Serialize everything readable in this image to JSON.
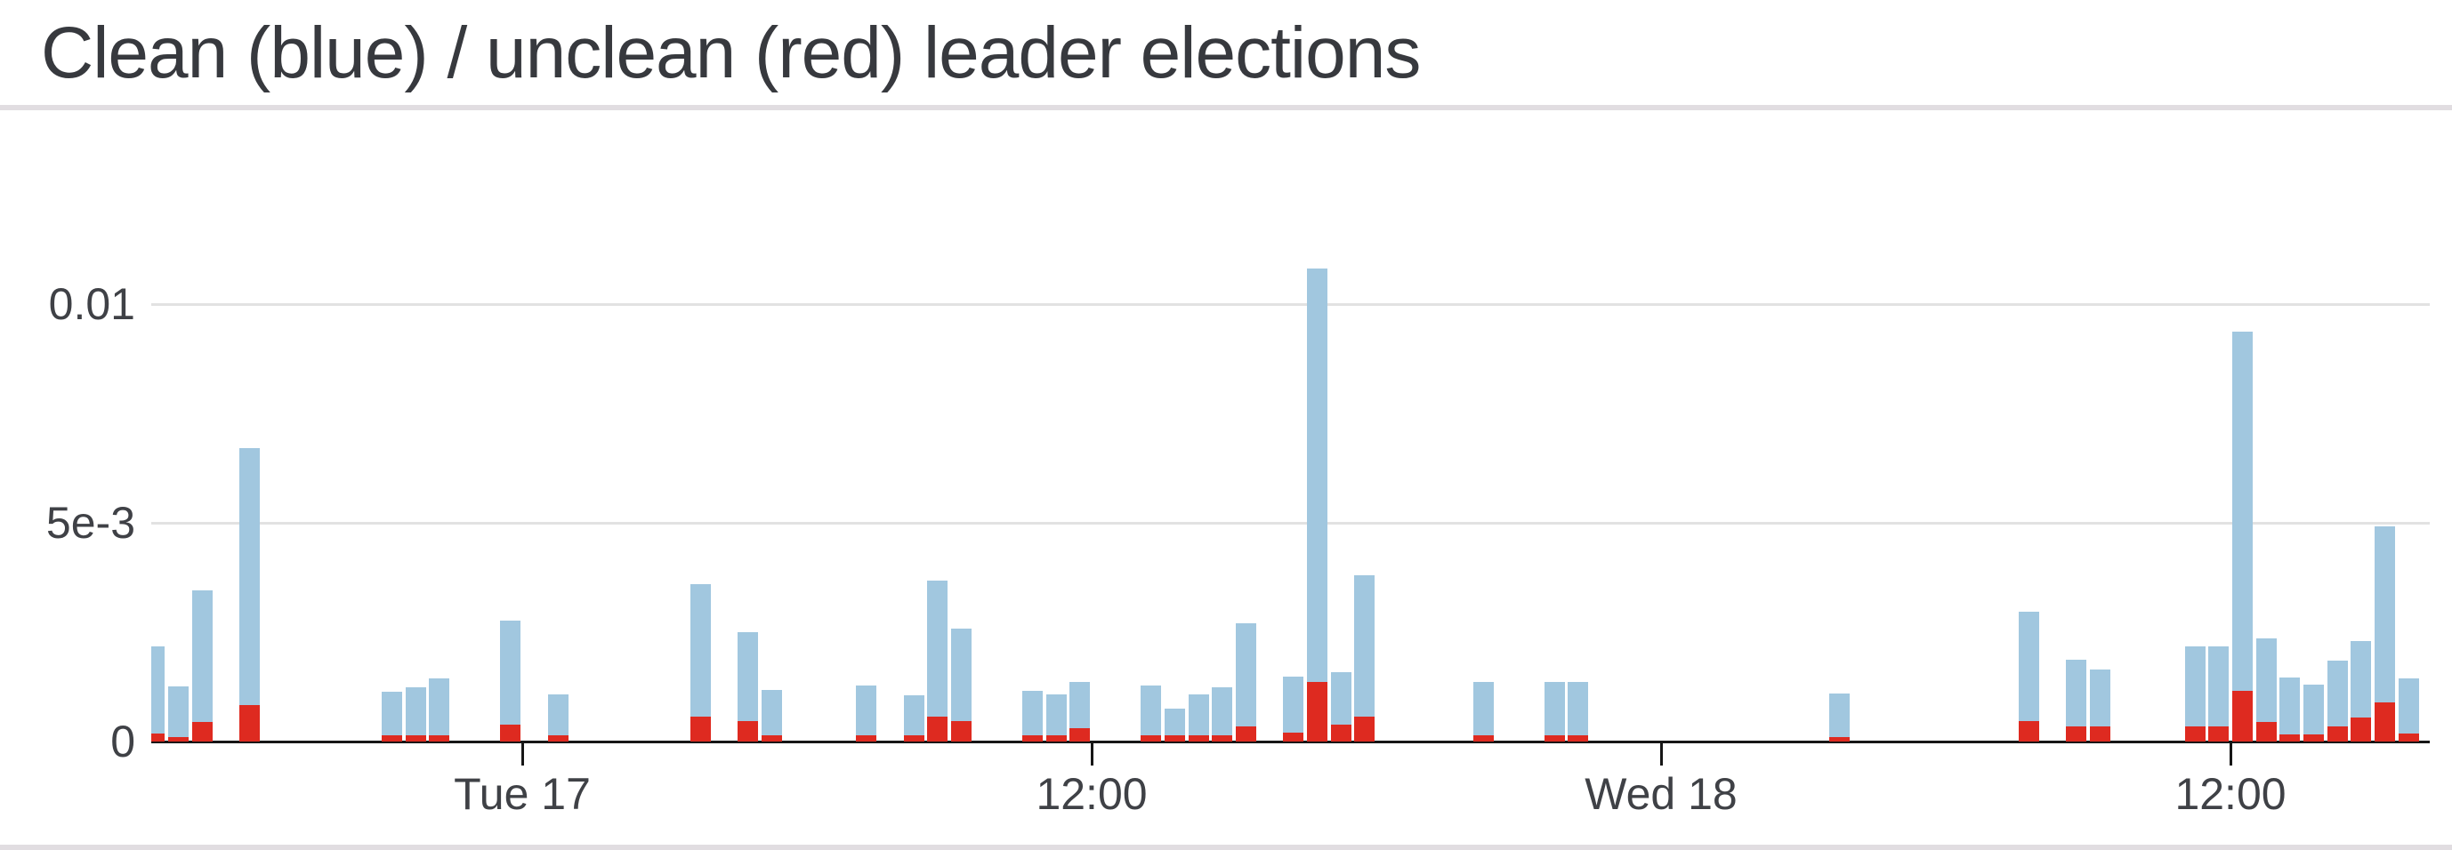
{
  "header": {
    "title": "Clean (blue) / unclean (red) leader elections"
  },
  "chart_data": {
    "type": "bar",
    "stacked": true,
    "title": "Clean (blue) / unclean (red) leader elections",
    "xlabel": "",
    "ylabel": "",
    "x_axis": {
      "unit": "time",
      "bucket_minutes": 30,
      "slot_zero_time": "Tue 17 00:00",
      "range_slots": [
        -15.6,
        80.4
      ],
      "ticks": [
        {
          "label": "Tue 17",
          "slot": 0
        },
        {
          "label": "12:00",
          "slot": 24
        },
        {
          "label": "Wed 18",
          "slot": 48
        },
        {
          "label": "12:00",
          "slot": 72
        }
      ]
    },
    "y_axis": {
      "ticks": [
        {
          "label": "0",
          "value": 0
        },
        {
          "label": "5e-3",
          "value": 0.005
        },
        {
          "label": "0.01",
          "value": 0.01
        }
      ],
      "ylim": [
        0,
        0.0139
      ],
      "grid": true
    },
    "legend": {
      "position": "none",
      "note": "series identified by color in title"
    },
    "series": [
      {
        "name": "clean",
        "color": "#A1C7DF"
      },
      {
        "name": "unclean",
        "color": "#DE2A20"
      }
    ],
    "bars": [
      {
        "slot": -16,
        "clean": 0.00199,
        "unclean": 0.00018
      },
      {
        "slot": -15,
        "clean": 0.00115,
        "unclean": 0.0001
      },
      {
        "slot": -14,
        "clean": 0.003,
        "unclean": 0.00045
      },
      {
        "slot": -12,
        "clean": 0.00588,
        "unclean": 0.00084
      },
      {
        "slot": -6,
        "clean": 0.00099,
        "unclean": 0.00014
      },
      {
        "slot": -5,
        "clean": 0.0011,
        "unclean": 0.00014
      },
      {
        "slot": -4,
        "clean": 0.0013,
        "unclean": 0.00014
      },
      {
        "slot": -1,
        "clean": 0.00237,
        "unclean": 0.00038
      },
      {
        "slot": 1,
        "clean": 0.00094,
        "unclean": 0.00014
      },
      {
        "slot": 7,
        "clean": 0.00303,
        "unclean": 0.00057
      },
      {
        "slot": 9,
        "clean": 0.00203,
        "unclean": 0.00047
      },
      {
        "slot": 10,
        "clean": 0.00104,
        "unclean": 0.00014
      },
      {
        "slot": 14,
        "clean": 0.00113,
        "unclean": 0.00015
      },
      {
        "slot": 16,
        "clean": 0.00091,
        "unclean": 0.00015
      },
      {
        "slot": 17,
        "clean": 0.00311,
        "unclean": 0.00057
      },
      {
        "slot": 18,
        "clean": 0.00211,
        "unclean": 0.00047
      },
      {
        "slot": 21,
        "clean": 0.00101,
        "unclean": 0.00015
      },
      {
        "slot": 22,
        "clean": 0.00093,
        "unclean": 0.00015
      },
      {
        "slot": 23,
        "clean": 0.00106,
        "unclean": 0.0003
      },
      {
        "slot": 26,
        "clean": 0.00113,
        "unclean": 0.00015
      },
      {
        "slot": 27,
        "clean": 0.0006,
        "unclean": 0.00015
      },
      {
        "slot": 28,
        "clean": 0.00093,
        "unclean": 0.00015
      },
      {
        "slot": 29,
        "clean": 0.00109,
        "unclean": 0.00015
      },
      {
        "slot": 30,
        "clean": 0.00235,
        "unclean": 0.00035
      },
      {
        "slot": 32,
        "clean": 0.00128,
        "unclean": 0.0002
      },
      {
        "slot": 33,
        "clean": 0.00945,
        "unclean": 0.00136
      },
      {
        "slot": 34,
        "clean": 0.0012,
        "unclean": 0.00039
      },
      {
        "slot": 35,
        "clean": 0.00324,
        "unclean": 0.00057
      },
      {
        "slot": 40,
        "clean": 0.00121,
        "unclean": 0.00015
      },
      {
        "slot": 43,
        "clean": 0.00121,
        "unclean": 0.00015
      },
      {
        "slot": 44,
        "clean": 0.00121,
        "unclean": 0.00015
      },
      {
        "slot": 55,
        "clean": 0.001,
        "unclean": 0.0001
      },
      {
        "slot": 63,
        "clean": 0.00251,
        "unclean": 0.00047
      },
      {
        "slot": 65,
        "clean": 0.00153,
        "unclean": 0.00035
      },
      {
        "slot": 66,
        "clean": 0.00131,
        "unclean": 0.00035
      },
      {
        "slot": 70,
        "clean": 0.00183,
        "unclean": 0.00035
      },
      {
        "slot": 71,
        "clean": 0.00183,
        "unclean": 0.00035
      },
      {
        "slot": 72,
        "clean": 0.00821,
        "unclean": 0.00116
      },
      {
        "slot": 73,
        "clean": 0.00191,
        "unclean": 0.00045
      },
      {
        "slot": 74,
        "clean": 0.00131,
        "unclean": 0.00017
      },
      {
        "slot": 75,
        "clean": 0.00113,
        "unclean": 0.00017
      },
      {
        "slot": 76,
        "clean": 0.0015,
        "unclean": 0.00035
      },
      {
        "slot": 77,
        "clean": 0.00175,
        "unclean": 0.00055
      },
      {
        "slot": 78,
        "clean": 0.00403,
        "unclean": 0.00089
      },
      {
        "slot": 79,
        "clean": 0.00126,
        "unclean": 0.00019
      }
    ]
  }
}
